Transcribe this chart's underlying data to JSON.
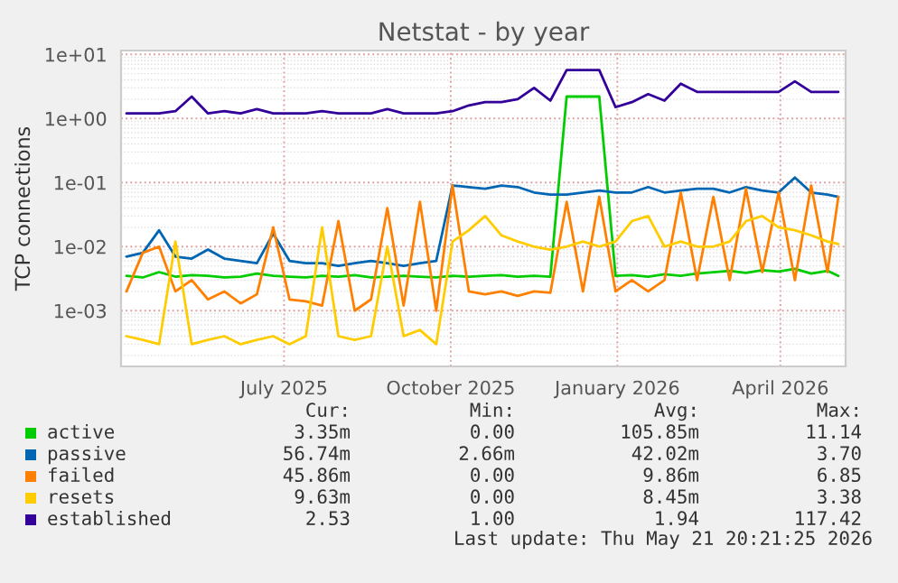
{
  "chart_data": {
    "type": "line",
    "title": "Netstat - by year",
    "ylabel": "TCP connections",
    "log": true,
    "grid": true,
    "legend": "bottom",
    "x": [
      "2025-04-05",
      "2025-04-14",
      "2025-04-23",
      "2025-05-02",
      "2025-05-11",
      "2025-05-20",
      "2025-05-29",
      "2025-06-07",
      "2025-06-16",
      "2025-06-25",
      "2025-07-04",
      "2025-07-13",
      "2025-07-22",
      "2025-07-31",
      "2025-08-09",
      "2025-08-18",
      "2025-08-27",
      "2025-09-05",
      "2025-09-14",
      "2025-09-23",
      "2025-10-02",
      "2025-10-11",
      "2025-10-20",
      "2025-10-29",
      "2025-11-07",
      "2025-11-16",
      "2025-11-25",
      "2025-12-04",
      "2025-12-13",
      "2025-12-22",
      "2025-12-31",
      "2026-01-09",
      "2026-01-18",
      "2026-01-27",
      "2026-02-05",
      "2026-02-14",
      "2026-02-23",
      "2026-03-04",
      "2026-03-13",
      "2026-03-22",
      "2026-03-31",
      "2026-04-09",
      "2026-04-18",
      "2026-04-27",
      "2026-05-03"
    ],
    "xlim": [
      "2025-04-02",
      "2026-05-07"
    ],
    "xticks": [
      {
        "value": "2025-07-01",
        "label": "July 2025"
      },
      {
        "value": "2025-10-01",
        "label": "October 2025"
      },
      {
        "value": "2026-01-01",
        "label": "January 2026"
      },
      {
        "value": "2026-04-01",
        "label": "April 2026"
      }
    ],
    "ylim": [
      0.000135,
      11.5
    ],
    "yticks": [
      {
        "value": 0.001,
        "label": "1e-03"
      },
      {
        "value": 0.01,
        "label": "1e-02"
      },
      {
        "value": 0.1,
        "label": "1e-01"
      },
      {
        "value": 1,
        "label": "1e+00"
      },
      {
        "value": 10,
        "label": "1e+01"
      }
    ],
    "series": [
      {
        "name": "active",
        "color": "#00cc00",
        "values": [
          0.0035,
          0.0033,
          0.004,
          0.0034,
          0.0036,
          0.0035,
          0.0033,
          0.0034,
          0.0038,
          0.0035,
          0.0034,
          0.0033,
          0.0035,
          0.0034,
          0.0036,
          0.0033,
          0.0034,
          0.0035,
          0.0034,
          0.0033,
          0.0035,
          0.0034,
          0.0035,
          0.0036,
          0.0034,
          0.0035,
          0.0034,
          2.2,
          2.2,
          2.2,
          0.0035,
          0.0036,
          0.0034,
          0.0037,
          0.0035,
          0.0038,
          0.004,
          0.0042,
          0.0039,
          0.0043,
          0.0041,
          0.0045,
          0.0038,
          0.0042,
          0.0035
        ]
      },
      {
        "name": "passive",
        "color": "#0066b3",
        "values": [
          0.007,
          0.008,
          0.018,
          0.007,
          0.0065,
          0.009,
          0.0065,
          0.006,
          0.0055,
          0.016,
          0.006,
          0.0055,
          0.0055,
          0.005,
          0.0055,
          0.006,
          0.0055,
          0.005,
          0.0055,
          0.006,
          0.09,
          0.085,
          0.08,
          0.09,
          0.085,
          0.07,
          0.065,
          0.065,
          0.07,
          0.075,
          0.07,
          0.07,
          0.085,
          0.07,
          0.075,
          0.08,
          0.08,
          0.07,
          0.085,
          0.075,
          0.07,
          0.12,
          0.07,
          0.065,
          0.06
        ]
      },
      {
        "name": "failed",
        "color": "#ff8000",
        "values": [
          0.002,
          0.008,
          0.01,
          0.002,
          0.003,
          0.0015,
          0.002,
          0.0013,
          0.0018,
          0.02,
          0.0015,
          0.0014,
          0.0012,
          0.025,
          0.001,
          0.0015,
          0.04,
          0.0012,
          0.05,
          0.001,
          0.09,
          0.002,
          0.0018,
          0.002,
          0.0017,
          0.002,
          0.0019,
          0.05,
          0.002,
          0.06,
          0.002,
          0.003,
          0.002,
          0.003,
          0.07,
          0.003,
          0.06,
          0.003,
          0.08,
          0.004,
          0.07,
          0.003,
          0.09,
          0.004,
          0.06
        ]
      },
      {
        "name": "resets",
        "color": "#ffcc00",
        "values": [
          0.0004,
          0.00035,
          0.0003,
          0.012,
          0.0003,
          0.00035,
          0.0004,
          0.0003,
          0.00035,
          0.0004,
          0.0003,
          0.0004,
          0.02,
          0.0004,
          0.00035,
          0.0004,
          0.01,
          0.0004,
          0.0005,
          0.0003,
          0.012,
          0.018,
          0.03,
          0.015,
          0.012,
          0.01,
          0.009,
          0.01,
          0.012,
          0.01,
          0.012,
          0.025,
          0.03,
          0.01,
          0.012,
          0.01,
          0.01,
          0.012,
          0.025,
          0.03,
          0.02,
          0.018,
          0.015,
          0.012,
          0.011
        ]
      },
      {
        "name": "established",
        "color": "#330099",
        "values": [
          1.2,
          1.2,
          1.2,
          1.3,
          2.2,
          1.2,
          1.3,
          1.2,
          1.4,
          1.2,
          1.2,
          1.2,
          1.3,
          1.2,
          1.2,
          1.2,
          1.4,
          1.2,
          1.2,
          1.2,
          1.3,
          1.6,
          1.8,
          1.8,
          2.0,
          3.0,
          1.9,
          5.7,
          5.7,
          5.7,
          1.5,
          1.8,
          2.4,
          1.9,
          3.5,
          2.6,
          2.6,
          2.6,
          2.6,
          2.6,
          2.6,
          3.8,
          2.6,
          2.6,
          2.6
        ]
      }
    ],
    "annotations": [
      "Cur:",
      "Min:",
      "Avg:",
      "Max:",
      "3.35m",
      "0.00",
      "105.85m",
      "11.14",
      "56.74m",
      "2.66m",
      "42.02m",
      "3.70",
      "45.86m",
      "0.00",
      "9.86m",
      "6.85",
      "9.63m",
      "0.00",
      "8.45m",
      "3.38",
      "2.53",
      "1.00",
      "1.94",
      "117.42",
      "Last update: Thu May 21 20:21:25 2026"
    ]
  }
}
